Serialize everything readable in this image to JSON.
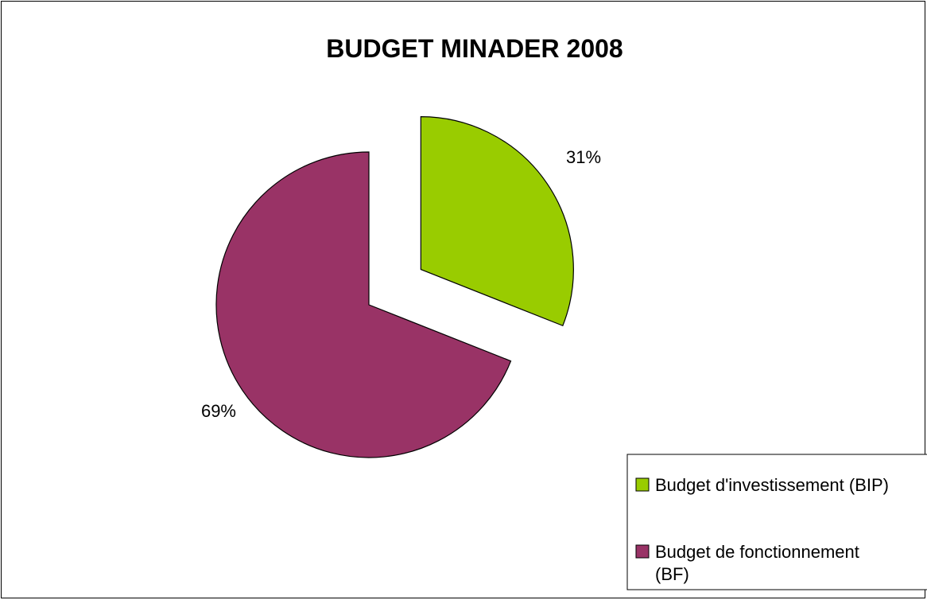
{
  "chart_data": {
    "type": "pie",
    "title": "BUDGET MINADER 2008",
    "categories": [
      "Budget d'investissement (BIP)",
      "Budget de fonctionnement (BF)"
    ],
    "values": [
      31,
      69
    ],
    "labels": [
      "31%",
      "69%"
    ],
    "colors": [
      "#99cc00",
      "#993366"
    ],
    "exploded": [
      true,
      false
    ],
    "legend": {
      "position": "right",
      "entries": [
        {
          "lines": [
            "Budget d'investissement (BIP)"
          ]
        },
        {
          "lines": [
            "Budget de fonctionnement",
            "(BF)"
          ]
        }
      ]
    }
  }
}
